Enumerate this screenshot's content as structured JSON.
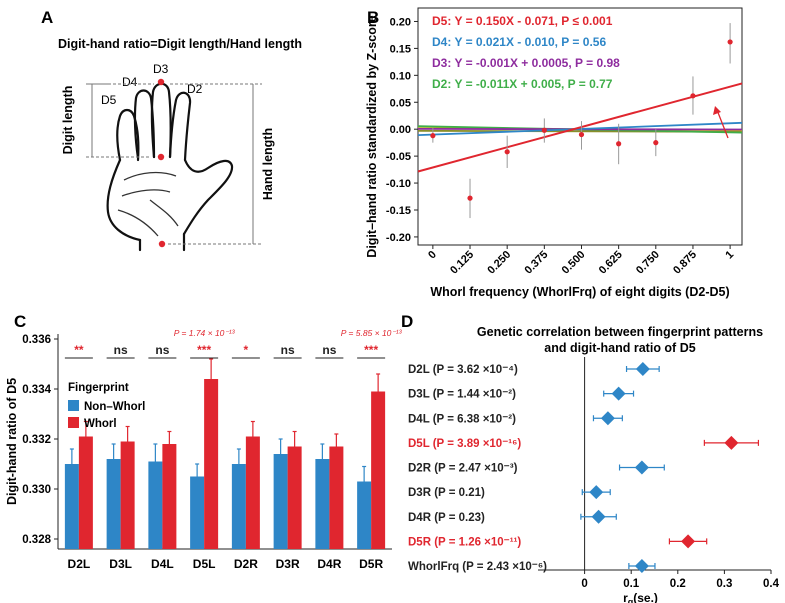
{
  "panels": {
    "a": "A",
    "b": "B",
    "c": "C",
    "d": "D"
  },
  "panelA": {
    "title": "Digit-hand ratio=Digit length/Hand length",
    "digit_labels": [
      "D5",
      "D4",
      "D3",
      "D2"
    ],
    "digit_length_label": "Digit length",
    "hand_length_label": "Hand length"
  },
  "chart_data": [
    {
      "type": "scatter",
      "id": "B",
      "xlabel": "Whorl frequency (WhorlFrq) of eight digits (D2-D5)",
      "ylabel": "Digit–hand ratio standardized by Z-score",
      "xlim": [
        -0.05,
        1.04
      ],
      "ylim": [
        -0.215,
        0.225
      ],
      "x_ticks": [
        "0",
        "0.125",
        "0.250",
        "0.375",
        "0.500",
        "0.625",
        "0.750",
        "0.875",
        "1"
      ],
      "x_tick_values": [
        0,
        0.125,
        0.25,
        0.375,
        0.5,
        0.625,
        0.75,
        0.875,
        1
      ],
      "y_ticks": [
        0.2,
        0.15,
        0.1,
        0.05,
        0.0,
        -0.05,
        -0.1,
        -0.15,
        -0.2
      ],
      "y_tick_labels": [
        "0.20",
        "0.15",
        "0.10",
        "0.05",
        "0.00",
        "-0.05",
        "-0.10",
        "-0.15",
        "-0.20"
      ],
      "points": [
        {
          "x": 0,
          "y": -0.012,
          "lo": -0.025,
          "hi": 0.002
        },
        {
          "x": 0.125,
          "y": -0.128,
          "lo": -0.165,
          "hi": -0.092
        },
        {
          "x": 0.25,
          "y": -0.042,
          "lo": -0.072,
          "hi": -0.012
        },
        {
          "x": 0.375,
          "y": -0.002,
          "lo": -0.025,
          "hi": 0.02
        },
        {
          "x": 0.5,
          "y": -0.01,
          "lo": -0.038,
          "hi": 0.015
        },
        {
          "x": 0.625,
          "y": -0.027,
          "lo": -0.065,
          "hi": 0.01
        },
        {
          "x": 0.75,
          "y": -0.025,
          "lo": -0.05,
          "hi": 0.0
        },
        {
          "x": 0.875,
          "y": 0.062,
          "lo": 0.027,
          "hi": 0.098
        },
        {
          "x": 1,
          "y": 0.162,
          "lo": 0.122,
          "hi": 0.197
        }
      ],
      "series": [
        {
          "name": "D5",
          "equation": "D5: Y = 0.150X - 0.071, P ≤ 0.001",
          "slope": 0.15,
          "intercept": -0.071,
          "color": "#e0262f"
        },
        {
          "name": "D4",
          "equation": "D4: Y = 0.021X - 0.010, P = 0.56",
          "slope": 0.021,
          "intercept": -0.01,
          "color": "#2e86c7"
        },
        {
          "name": "D3",
          "equation": "D3: Y = -0.001X + 0.0005, P = 0.98",
          "slope": -0.001,
          "intercept": 0.0005,
          "color": "#8e2c9e"
        },
        {
          "name": "D2",
          "equation": "D2: Y = -0.011X + 0.005, P = 0.77",
          "slope": -0.011,
          "intercept": 0.005,
          "color": "#3fae49"
        }
      ],
      "extra_fit_colors": [
        "#8a8f2a",
        "#c9b11a"
      ],
      "point_color": "#e0262f",
      "grid": false
    },
    {
      "type": "bar",
      "id": "C",
      "ylabel": "Digit-hand ratio of D5",
      "ylim": [
        0.3276,
        0.3362
      ],
      "y_ticks": [
        0.328,
        0.33,
        0.332,
        0.334,
        0.336
      ],
      "y_tick_labels": [
        "0.328",
        "0.330",
        "0.332",
        "0.334",
        "0.336"
      ],
      "legend_title": "Fingerprint",
      "legend_position": "top-left",
      "categories": [
        "D2L",
        "D3L",
        "D4L",
        "D5L",
        "D2R",
        "D3R",
        "D4R",
        "D5R"
      ],
      "series": [
        {
          "name": "Non–Whorl",
          "color": "#2e86c7",
          "values": [
            0.331,
            0.3312,
            0.3311,
            0.3305,
            0.331,
            0.3314,
            0.3312,
            0.3303
          ],
          "errors": [
            0.0006,
            0.0006,
            0.0007,
            0.0005,
            0.0006,
            0.0006,
            0.0006,
            0.0006
          ]
        },
        {
          "name": "Whorl",
          "color": "#e0262f",
          "values": [
            0.3321,
            0.3319,
            0.3318,
            0.3344,
            0.3321,
            0.3317,
            0.3317,
            0.3339
          ],
          "errors": [
            0.0006,
            0.0006,
            0.0005,
            0.0008,
            0.0006,
            0.0006,
            0.0005,
            0.0007
          ]
        }
      ],
      "significance": [
        "**",
        "ns",
        "ns",
        "***",
        "*",
        "ns",
        "ns",
        "***"
      ],
      "annotations": [
        {
          "category": "D5L",
          "text": "P = 1.74 × 10⁻¹³"
        },
        {
          "category": "D5R",
          "text": "P = 5.85 × 10⁻¹³"
        }
      ]
    },
    {
      "type": "forest",
      "id": "D",
      "title": "Genetic correlation between fingerprint patterns",
      "subtitle": "and digit-hand ratio of D5",
      "xlabel": "r_g(se.)",
      "xlabel_main": "r",
      "xlabel_sub": "g",
      "xlabel_rest": "(se.)",
      "xlim": [
        -0.1,
        0.4
      ],
      "x_ticks": [
        0,
        0.1,
        0.2,
        0.3,
        0.4
      ],
      "x_tick_labels": [
        "0",
        "0.1",
        "0.2",
        "0.3",
        "0.4"
      ],
      "rows": [
        {
          "name": "D2L",
          "p": "(P = 3.62 ×10⁻⁴)",
          "rg": 0.125,
          "se": 0.035,
          "color": "#2e86c7",
          "highlight": false
        },
        {
          "name": "D3L",
          "p": "(P = 1.44 ×10⁻²)",
          "rg": 0.073,
          "se": 0.032,
          "color": "#2e86c7",
          "highlight": false
        },
        {
          "name": "D4L",
          "p": "(P = 6.38 ×10⁻²)",
          "rg": 0.05,
          "se": 0.031,
          "color": "#2e86c7",
          "highlight": false
        },
        {
          "name": "D5L",
          "p": "(P = 3.89 ×10⁻¹⁶)",
          "rg": 0.315,
          "se": 0.058,
          "color": "#e0262f",
          "highlight": true
        },
        {
          "name": "D2R",
          "p": "(P = 2.47 ×10⁻³)",
          "rg": 0.123,
          "se": 0.048,
          "color": "#2e86c7",
          "highlight": false
        },
        {
          "name": "D3R",
          "p": "(P = 0.21)",
          "rg": 0.025,
          "se": 0.03,
          "color": "#2e86c7",
          "highlight": false
        },
        {
          "name": "D4R",
          "p": "(P = 0.23)",
          "rg": 0.03,
          "se": 0.038,
          "color": "#2e86c7",
          "highlight": false
        },
        {
          "name": "D5R",
          "p": "(P = 1.26 ×10⁻¹¹)",
          "rg": 0.222,
          "se": 0.04,
          "color": "#e0262f",
          "highlight": true
        },
        {
          "name": "WhorlFrq",
          "p": "(P = 2.43 ×10⁻⁶)",
          "rg": 0.123,
          "se": 0.028,
          "color": "#2e86c7",
          "highlight": false
        }
      ]
    }
  ]
}
